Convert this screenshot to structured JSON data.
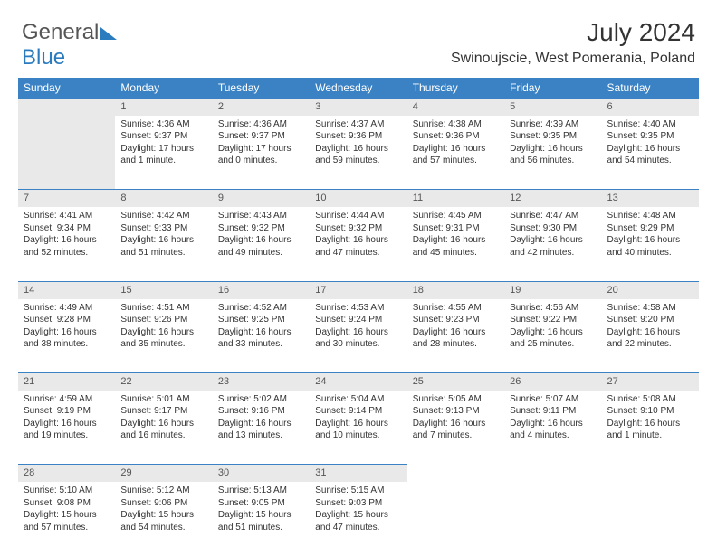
{
  "logo": {
    "part1": "General",
    "part2": "Blue"
  },
  "title": "July 2024",
  "location": "Swinoujscie, West Pomerania, Poland",
  "headers": [
    "Sunday",
    "Monday",
    "Tuesday",
    "Wednesday",
    "Thursday",
    "Friday",
    "Saturday"
  ],
  "headerBg": "#3b82c4",
  "headerColor": "#ffffff",
  "dayBg": "#e9e9e9",
  "firstDayIndex": 1,
  "daysInMonth": 31,
  "days": {
    "1": {
      "sunrise": "4:36 AM",
      "sunset": "9:37 PM",
      "daylight": "17 hours and 1 minute."
    },
    "2": {
      "sunrise": "4:36 AM",
      "sunset": "9:37 PM",
      "daylight": "17 hours and 0 minutes."
    },
    "3": {
      "sunrise": "4:37 AM",
      "sunset": "9:36 PM",
      "daylight": "16 hours and 59 minutes."
    },
    "4": {
      "sunrise": "4:38 AM",
      "sunset": "9:36 PM",
      "daylight": "16 hours and 57 minutes."
    },
    "5": {
      "sunrise": "4:39 AM",
      "sunset": "9:35 PM",
      "daylight": "16 hours and 56 minutes."
    },
    "6": {
      "sunrise": "4:40 AM",
      "sunset": "9:35 PM",
      "daylight": "16 hours and 54 minutes."
    },
    "7": {
      "sunrise": "4:41 AM",
      "sunset": "9:34 PM",
      "daylight": "16 hours and 52 minutes."
    },
    "8": {
      "sunrise": "4:42 AM",
      "sunset": "9:33 PM",
      "daylight": "16 hours and 51 minutes."
    },
    "9": {
      "sunrise": "4:43 AM",
      "sunset": "9:32 PM",
      "daylight": "16 hours and 49 minutes."
    },
    "10": {
      "sunrise": "4:44 AM",
      "sunset": "9:32 PM",
      "daylight": "16 hours and 47 minutes."
    },
    "11": {
      "sunrise": "4:45 AM",
      "sunset": "9:31 PM",
      "daylight": "16 hours and 45 minutes."
    },
    "12": {
      "sunrise": "4:47 AM",
      "sunset": "9:30 PM",
      "daylight": "16 hours and 42 minutes."
    },
    "13": {
      "sunrise": "4:48 AM",
      "sunset": "9:29 PM",
      "daylight": "16 hours and 40 minutes."
    },
    "14": {
      "sunrise": "4:49 AM",
      "sunset": "9:28 PM",
      "daylight": "16 hours and 38 minutes."
    },
    "15": {
      "sunrise": "4:51 AM",
      "sunset": "9:26 PM",
      "daylight": "16 hours and 35 minutes."
    },
    "16": {
      "sunrise": "4:52 AM",
      "sunset": "9:25 PM",
      "daylight": "16 hours and 33 minutes."
    },
    "17": {
      "sunrise": "4:53 AM",
      "sunset": "9:24 PM",
      "daylight": "16 hours and 30 minutes."
    },
    "18": {
      "sunrise": "4:55 AM",
      "sunset": "9:23 PM",
      "daylight": "16 hours and 28 minutes."
    },
    "19": {
      "sunrise": "4:56 AM",
      "sunset": "9:22 PM",
      "daylight": "16 hours and 25 minutes."
    },
    "20": {
      "sunrise": "4:58 AM",
      "sunset": "9:20 PM",
      "daylight": "16 hours and 22 minutes."
    },
    "21": {
      "sunrise": "4:59 AM",
      "sunset": "9:19 PM",
      "daylight": "16 hours and 19 minutes."
    },
    "22": {
      "sunrise": "5:01 AM",
      "sunset": "9:17 PM",
      "daylight": "16 hours and 16 minutes."
    },
    "23": {
      "sunrise": "5:02 AM",
      "sunset": "9:16 PM",
      "daylight": "16 hours and 13 minutes."
    },
    "24": {
      "sunrise": "5:04 AM",
      "sunset": "9:14 PM",
      "daylight": "16 hours and 10 minutes."
    },
    "25": {
      "sunrise": "5:05 AM",
      "sunset": "9:13 PM",
      "daylight": "16 hours and 7 minutes."
    },
    "26": {
      "sunrise": "5:07 AM",
      "sunset": "9:11 PM",
      "daylight": "16 hours and 4 minutes."
    },
    "27": {
      "sunrise": "5:08 AM",
      "sunset": "9:10 PM",
      "daylight": "16 hours and 1 minute."
    },
    "28": {
      "sunrise": "5:10 AM",
      "sunset": "9:08 PM",
      "daylight": "15 hours and 57 minutes."
    },
    "29": {
      "sunrise": "5:12 AM",
      "sunset": "9:06 PM",
      "daylight": "15 hours and 54 minutes."
    },
    "30": {
      "sunrise": "5:13 AM",
      "sunset": "9:05 PM",
      "daylight": "15 hours and 51 minutes."
    },
    "31": {
      "sunrise": "5:15 AM",
      "sunset": "9:03 PM",
      "daylight": "15 hours and 47 minutes."
    }
  },
  "labels": {
    "sunrise": "Sunrise:",
    "sunset": "Sunset:",
    "daylight": "Daylight:"
  }
}
